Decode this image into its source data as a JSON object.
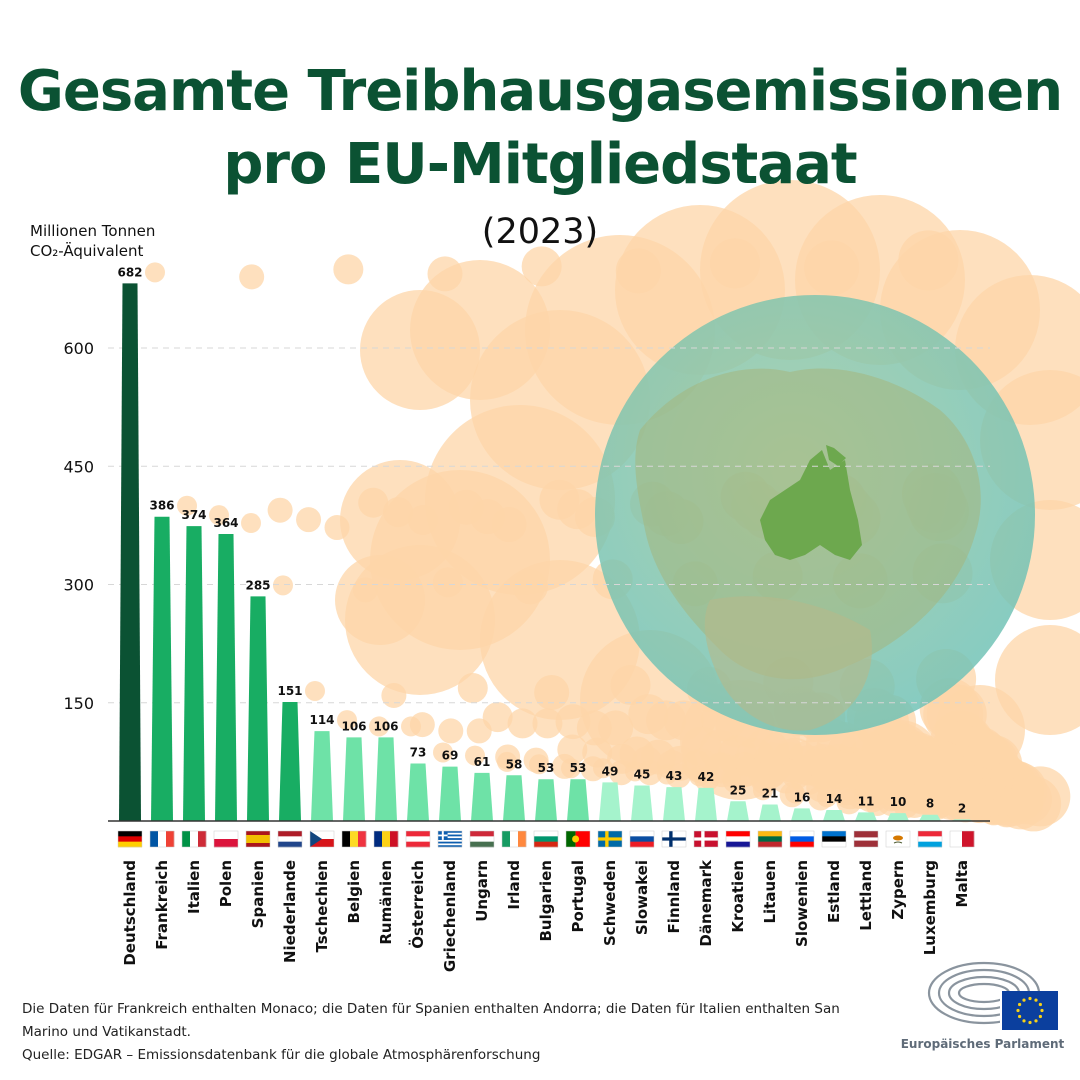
{
  "title_line1": "Gesamte Treibhausgasemissionen",
  "title_line2": "pro EU-Mitgliedstaat",
  "year_label": "(2023)",
  "unit_line1": "Millionen Tonnen",
  "unit_line2": "CO₂-Äquivalent",
  "footnote": "Die Daten für Frankreich enthalten Monaco; die Daten für Spanien enthalten Andorra; die Daten für Italien enthalten San Marino und Vatikanstadt.",
  "source": "Quelle: EDGAR – Emissionsdatenbank für die globale Atmosphärenforschung",
  "logo_text": "Europäisches Parlament",
  "colors": {
    "title": "#0b5233",
    "top_bar": "#0b5233",
    "high": "#18ad63",
    "mid": "#6ee2a7",
    "low": "#a5f3cc",
    "smoke": "#fdd5a8"
  },
  "chart_data": {
    "type": "bar",
    "title": "Gesamte Treibhausgasemissionen pro EU-Mitgliedstaat (2023)",
    "ylabel": "Millionen Tonnen CO₂-Äquivalent",
    "xlabel": "",
    "ylim": [
      0,
      700
    ],
    "yticks": [
      150,
      300,
      450,
      600
    ],
    "grid": true,
    "categories": [
      "Deutschland",
      "Frankreich",
      "Italien",
      "Polen",
      "Spanien",
      "Niederlande",
      "Tschechien",
      "Belgien",
      "Rumänien",
      "Österreich",
      "Griechenland",
      "Ungarn",
      "Irland",
      "Bulgarien",
      "Portugal",
      "Schweden",
      "Slowakei",
      "Finnland",
      "Dänemark",
      "Kroatien",
      "Litauen",
      "Slowenien",
      "Estland",
      "Lettland",
      "Zypern",
      "Luxemburg",
      "Malta"
    ],
    "values": [
      682,
      386,
      374,
      364,
      285,
      151,
      114,
      106,
      106,
      73,
      69,
      61,
      58,
      53,
      53,
      49,
      45,
      43,
      42,
      25,
      21,
      16,
      14,
      11,
      10,
      8,
      2
    ],
    "flags": [
      "de",
      "fr",
      "it",
      "pl",
      "es",
      "nl",
      "cz",
      "be",
      "ro",
      "at",
      "gr",
      "hu",
      "ie",
      "bg",
      "pt",
      "se",
      "sk",
      "fi",
      "dk",
      "hr",
      "lt",
      "si",
      "ee",
      "lv",
      "cy",
      "lu",
      "mt"
    ]
  }
}
